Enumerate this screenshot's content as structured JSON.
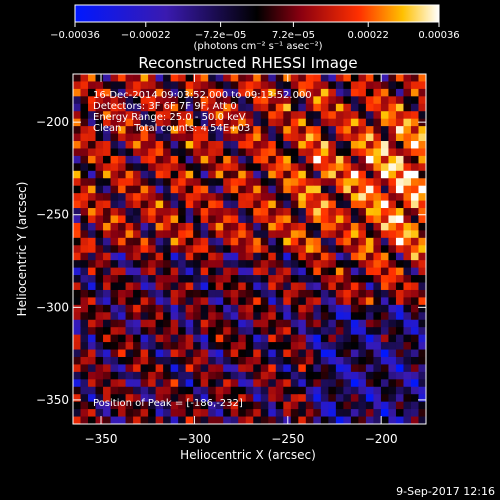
{
  "chart_data": {
    "type": "heatmap",
    "title": "Reconstructed RHESSI Image",
    "xlabel": "Heliocentric X (arcsec)",
    "ylabel": "Heliocentric Y (arcsec)",
    "xlim": [
      -365,
      -176
    ],
    "ylim": [
      -363,
      -174
    ],
    "x_ticks": [
      -350,
      -300,
      -250,
      -200
    ],
    "y_ticks": [
      -200,
      -250,
      -300,
      -350
    ],
    "x_tick_labels": [
      "−350",
      "−300",
      "−250",
      "−200"
    ],
    "y_tick_labels": [
      "−200",
      "−250",
      "−300",
      "−350"
    ],
    "colorbar": {
      "min": -0.00036,
      "max": 0.00036,
      "tick_values": [
        -0.00036,
        -0.00022,
        -7.2e-05,
        7.2e-05,
        0.00022,
        0.00036
      ],
      "tick_labels": [
        "−0.00036",
        "−0.00022",
        "−7.2e−05",
        "7.2e−05",
        "0.00022",
        "0.00036"
      ],
      "unit_label": "(photons cm⁻² s⁻¹ asec⁻²)"
    },
    "annotations": [
      "16-Dec-2014 09:03:52.000 to 09:13:52.000",
      "Detectors: 3F 6F 7F 9F, Att 0",
      "Energy Range: 25.0 - 50.0 keV",
      "Clean    Total counts: 4.54E+03"
    ],
    "peak_label": "Position of Peak = [-186,-232]",
    "peak_position": [
      -186,
      -232
    ],
    "grid": false
  },
  "footer": {
    "timestamp": "9-Sep-2017 12:16"
  },
  "colors": {
    "background": "#000000",
    "text": "#ffffff"
  }
}
